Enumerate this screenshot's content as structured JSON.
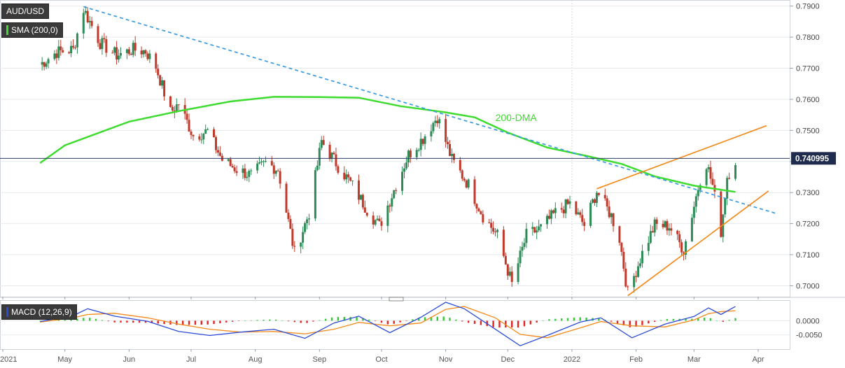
{
  "legend": {
    "symbol": "AUD/USD",
    "sma": "SMA (200,0)",
    "macd": "MACD (12,26,9)"
  },
  "chart_data": {
    "type": "candlestick",
    "symbol": "AUD/USD",
    "x_ticks": [
      "2021",
      "May",
      "Jun",
      "Jul",
      "Aug",
      "Sep",
      "Oct",
      "Nov",
      "Dec",
      "2022",
      "Feb",
      "Mar",
      "Apr"
    ],
    "y_ticks": [
      "0.7900",
      "0.7800",
      "0.7700",
      "0.7600",
      "0.7500",
      "0.7400",
      "0.7300",
      "0.7200",
      "0.7100",
      "0.7000"
    ],
    "ylim": [
      0.6965,
      0.7915
    ],
    "current_price": "0.740995",
    "current_price_value": 0.741,
    "candle_colors": {
      "up": "#2e8b57",
      "down": "#c0392b"
    },
    "price_path": [
      [
        "2021-04-19",
        0.7712
      ],
      [
        "2021-04-27",
        0.7752
      ],
      [
        "2021-05-05",
        0.776
      ],
      [
        "2021-05-10",
        0.789
      ],
      [
        "2021-05-18",
        0.7782
      ],
      [
        "2021-05-26",
        0.7742
      ],
      [
        "2021-06-03",
        0.776
      ],
      [
        "2021-06-09",
        0.7755
      ],
      [
        "2021-06-14",
        0.7705
      ],
      [
        "2021-06-21",
        0.7558
      ],
      [
        "2021-06-25",
        0.7586
      ],
      [
        "2021-07-02",
        0.7483
      ],
      [
        "2021-07-09",
        0.7497
      ],
      [
        "2021-07-16",
        0.7405
      ],
      [
        "2021-07-23",
        0.7375
      ],
      [
        "2021-07-30",
        0.7355
      ],
      [
        "2021-08-06",
        0.7395
      ],
      [
        "2021-08-12",
        0.7375
      ],
      [
        "2021-08-20",
        0.7105
      ],
      [
        "2021-08-27",
        0.7235
      ],
      [
        "2021-09-02",
        0.7465
      ],
      [
        "2021-09-10",
        0.7385
      ],
      [
        "2021-09-17",
        0.7322
      ],
      [
        "2021-09-24",
        0.7245
      ],
      [
        "2021-09-30",
        0.7192
      ],
      [
        "2021-10-08",
        0.7325
      ],
      [
        "2021-10-14",
        0.7422
      ],
      [
        "2021-10-21",
        0.7475
      ],
      [
        "2021-10-28",
        0.7545
      ],
      [
        "2021-11-04",
        0.7405
      ],
      [
        "2021-11-12",
        0.7325
      ],
      [
        "2021-11-19",
        0.7225
      ],
      [
        "2021-11-26",
        0.7162
      ],
      [
        "2021-12-03",
        0.7005
      ],
      [
        "2021-12-10",
        0.7162
      ],
      [
        "2021-12-17",
        0.7185
      ],
      [
        "2021-12-24",
        0.7235
      ],
      [
        "2021-12-31",
        0.7265
      ],
      [
        "2022-01-07",
        0.7195
      ],
      [
        "2022-01-13",
        0.7305
      ],
      [
        "2022-01-20",
        0.7225
      ],
      [
        "2022-01-24",
        0.7152
      ],
      [
        "2022-01-28",
        0.6975
      ],
      [
        "2022-02-04",
        0.7105
      ],
      [
        "2022-02-10",
        0.7195
      ],
      [
        "2022-02-17",
        0.7192
      ],
      [
        "2022-02-24",
        0.7115
      ],
      [
        "2022-03-04",
        0.7345
      ],
      [
        "2022-03-07",
        0.7395
      ],
      [
        "2022-03-10",
        0.7322
      ],
      [
        "2022-03-14",
        0.7175
      ],
      [
        "2022-03-17",
        0.7352
      ],
      [
        "2022-03-21",
        0.7405
      ]
    ],
    "sma_200": {
      "label": "200-DMA",
      "color": "#3ddc2f",
      "points": [
        [
          "2021-04-19",
          0.7395
        ],
        [
          "2021-05-01",
          0.7452
        ],
        [
          "2021-06-01",
          0.7528
        ],
        [
          "2021-06-25",
          0.7562
        ],
        [
          "2021-07-20",
          0.7593
        ],
        [
          "2021-08-10",
          0.7608
        ],
        [
          "2021-09-01",
          0.7607
        ],
        [
          "2021-09-20",
          0.7605
        ],
        [
          "2021-10-10",
          0.7578
        ],
        [
          "2021-11-01",
          0.7558
        ],
        [
          "2021-11-15",
          0.7542
        ],
        [
          "2021-12-01",
          0.7493
        ],
        [
          "2021-12-20",
          0.7445
        ],
        [
          "2022-01-10",
          0.7415
        ],
        [
          "2022-01-25",
          0.7392
        ],
        [
          "2022-02-10",
          0.7352
        ],
        [
          "2022-03-01",
          0.7322
        ],
        [
          "2022-03-21",
          0.7302
        ]
      ]
    },
    "trendlines": [
      {
        "name": "falling-resistance",
        "style": "dashed",
        "color": "#3a9be0",
        "points": [
          [
            "2021-05-10",
            0.7898
          ],
          [
            "2022-04-10",
            0.7232
          ]
        ]
      },
      {
        "name": "channel-top",
        "style": "solid",
        "color": "#f28a1c",
        "points": [
          [
            "2022-01-13",
            0.7312
          ],
          [
            "2022-04-05",
            0.7515
          ]
        ]
      },
      {
        "name": "channel-bottom",
        "style": "solid",
        "color": "#f28a1c",
        "points": [
          [
            "2022-01-28",
            0.6968
          ],
          [
            "2022-04-06",
            0.7305
          ]
        ]
      }
    ],
    "macd": {
      "ticks": [
        "0.0000",
        "-0.0050"
      ],
      "ylim": [
        -0.0095,
        0.0065
      ],
      "macd_color": "#2b4bd6",
      "signal_color": "#f28a1c",
      "points": [
        [
          "2021-04-19",
          -0.0003,
          -0.0005
        ],
        [
          "2021-05-05",
          0.0018,
          0.001
        ],
        [
          "2021-05-12",
          0.0042,
          0.0022
        ],
        [
          "2021-05-25",
          0.0016,
          0.0026
        ],
        [
          "2021-06-10",
          -0.0002,
          0.001
        ],
        [
          "2021-06-25",
          -0.0038,
          -0.0012
        ],
        [
          "2021-07-10",
          -0.0052,
          -0.003
        ],
        [
          "2021-07-25",
          -0.004,
          -0.004
        ],
        [
          "2021-08-10",
          -0.003,
          -0.0038
        ],
        [
          "2021-08-25",
          -0.0062,
          -0.0046
        ],
        [
          "2021-09-08",
          -0.0008,
          -0.003
        ],
        [
          "2021-09-20",
          0.0016,
          -0.0006
        ],
        [
          "2021-10-05",
          -0.0042,
          -0.0018
        ],
        [
          "2021-10-20",
          0.0012,
          -0.0008
        ],
        [
          "2021-11-01",
          0.0065,
          0.004
        ],
        [
          "2021-11-10",
          0.0042,
          0.005
        ],
        [
          "2021-11-25",
          -0.003,
          0.001
        ],
        [
          "2021-12-07",
          -0.0088,
          -0.0048
        ],
        [
          "2021-12-20",
          -0.0052,
          -0.006
        ],
        [
          "2022-01-05",
          -0.0005,
          -0.0025
        ],
        [
          "2022-01-15",
          0.001,
          -0.0003
        ],
        [
          "2022-01-30",
          -0.006,
          -0.0018
        ],
        [
          "2022-02-15",
          -0.0012,
          -0.0022
        ],
        [
          "2022-03-01",
          0.0015,
          0.0003
        ],
        [
          "2022-03-08",
          0.0045,
          0.0025
        ],
        [
          "2022-03-14",
          0.0022,
          0.0032
        ],
        [
          "2022-03-21",
          0.005,
          0.0035
        ]
      ],
      "hist_colors": {
        "positive": "#34c934",
        "negative": "#e02424"
      }
    }
  }
}
